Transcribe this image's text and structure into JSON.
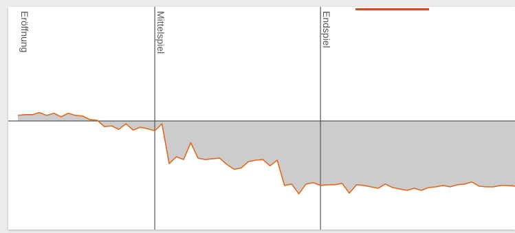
{
  "chart_data": {
    "type": "area",
    "title": "",
    "xlabel": "",
    "ylabel": "",
    "baseline": 0,
    "ylim": [
      -1.5,
      1.5
    ],
    "phases": [
      {
        "label": "Eröffnung",
        "start_move": 0
      },
      {
        "label": "Mittelspiel",
        "start_move": 19
      },
      {
        "label": "Endspiel",
        "start_move": 42
      }
    ],
    "x_max": 69,
    "series": [
      {
        "values": [
          0.08,
          0.09,
          0.09,
          0.12,
          0.08,
          0.11,
          0.06,
          0.11,
          0.08,
          0.07,
          0.02,
          0.01,
          -0.08,
          -0.07,
          -0.12,
          -0.04,
          -0.13,
          -0.09,
          -0.11,
          -0.14,
          -0.04,
          -0.61,
          -0.51,
          -0.55,
          -0.31,
          -0.53,
          -0.55,
          -0.54,
          -0.53,
          -0.62,
          -0.69,
          -0.67,
          -0.58,
          -0.56,
          -0.55,
          -0.64,
          -0.56,
          -0.92,
          -0.9,
          -1.04,
          -0.9,
          -0.88,
          -0.92,
          -0.91,
          -0.91,
          -0.89,
          -1.03,
          -0.91,
          -0.92,
          -0.94,
          -0.96,
          -0.9,
          -0.95,
          -0.97,
          -0.99,
          -0.96,
          -0.99,
          -0.95,
          -0.94,
          -0.92,
          -0.94,
          -0.91,
          -0.9,
          -0.87,
          -0.93,
          -0.94,
          -0.94,
          -0.92,
          -0.92,
          -0.93
        ]
      }
    ],
    "colors": {
      "line": "#e06a1c",
      "fill": "#cccccc",
      "axis": "#555555",
      "accent_bar": "#c8501e"
    }
  }
}
